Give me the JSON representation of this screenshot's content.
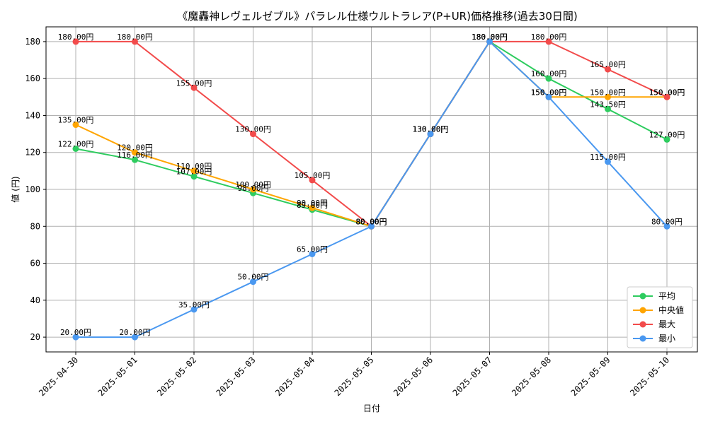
{
  "chart_data": {
    "type": "line",
    "title": "《魔轟神レヴェルゼブル》パラレル仕様ウルトラレア(P+UR)価格推移(過去30日間)",
    "xlabel": "日付",
    "ylabel": "値 (円)",
    "ylim": [
      12,
      188
    ],
    "yticks": [
      20,
      40,
      60,
      80,
      100,
      120,
      140,
      160,
      180
    ],
    "grid": true,
    "legend_position": "lower-right",
    "value_suffix": "円",
    "categories": [
      "2025-04-30",
      "2025-05-01",
      "2025-05-02",
      "2025-05-03",
      "2025-05-04",
      "2025-05-05",
      "2025-05-06",
      "2025-05-07",
      "2025-05-08",
      "2025-05-09",
      "2025-05-10"
    ],
    "series": [
      {
        "name": "平均",
        "color": "#2ecc5f",
        "values": [
          122.0,
          116.0,
          107.0,
          98.0,
          89.0,
          80.0,
          130.0,
          180.0,
          160.0,
          143.5,
          127.0
        ]
      },
      {
        "name": "中央値",
        "color": "#ffa500",
        "values": [
          135.0,
          120.0,
          110.0,
          100.0,
          90.0,
          80.0,
          130.0,
          180.0,
          150.0,
          150.0,
          150.0
        ]
      },
      {
        "name": "最大",
        "color": "#f24b4b",
        "values": [
          180.0,
          180.0,
          155.0,
          130.0,
          105.0,
          80.0,
          130.0,
          180.0,
          180.0,
          165.0,
          150.0
        ]
      },
      {
        "name": "最小",
        "color": "#4a98f0",
        "values": [
          20.0,
          20.0,
          35.0,
          50.0,
          65.0,
          80.0,
          130.0,
          180.0,
          150.0,
          115.0,
          80.0
        ]
      }
    ]
  }
}
